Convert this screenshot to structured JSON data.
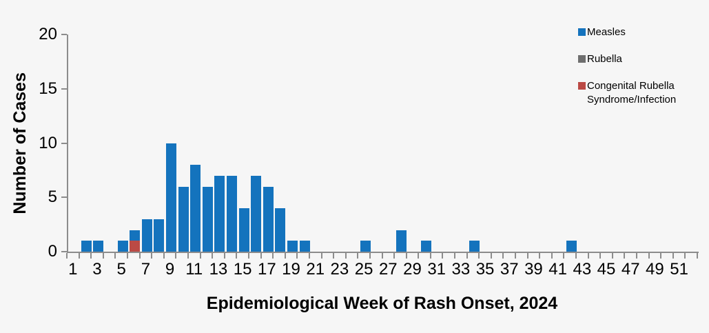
{
  "page": {
    "background_color": "#f6f6f6"
  },
  "chart": {
    "y_axis_title": "Number of Cases",
    "x_axis_title": "Epidemiological Week of Rash Onset, 2024",
    "axis_color": "#8c8c8c",
    "text_color": "#000000"
  },
  "chart_data": {
    "type": "bar",
    "stacked": true,
    "title": "",
    "xlabel": "Epidemiological Week of Rash Onset, 2024",
    "ylabel": "Number of Cases",
    "x": [
      1,
      2,
      3,
      4,
      5,
      6,
      7,
      8,
      9,
      10,
      11,
      12,
      13,
      14,
      15,
      16,
      17,
      18,
      19,
      20,
      21,
      22,
      23,
      24,
      25,
      26,
      27,
      28,
      29,
      30,
      31,
      32,
      33,
      34,
      35,
      36,
      37,
      38,
      39,
      40,
      41,
      42,
      43,
      44,
      45,
      46,
      47,
      48,
      49,
      50,
      51,
      52
    ],
    "x_tick_labels": [
      1,
      3,
      5,
      7,
      9,
      11,
      13,
      15,
      17,
      19,
      21,
      23,
      25,
      27,
      29,
      31,
      33,
      35,
      37,
      39,
      41,
      43,
      45,
      47,
      49,
      51
    ],
    "y_ticks": [
      0,
      5,
      10,
      15,
      20
    ],
    "ylim": [
      0,
      20
    ],
    "grid": false,
    "legend_position": "top-right",
    "stack_order_bottom_to_top": [
      "Congenital Rubella Syndrome/Infection",
      "Rubella",
      "Measles"
    ],
    "series": [
      {
        "name": "Measles",
        "color": "#1473bd",
        "values": [
          0,
          1,
          1,
          0,
          1,
          1,
          3,
          3,
          10,
          6,
          8,
          6,
          7,
          7,
          4,
          7,
          6,
          4,
          1,
          1,
          0,
          0,
          0,
          0,
          1,
          0,
          0,
          2,
          0,
          1,
          0,
          0,
          0,
          1,
          0,
          0,
          0,
          0,
          0,
          0,
          0,
          1,
          0,
          0,
          0,
          0,
          0,
          0,
          0,
          0,
          0,
          0
        ]
      },
      {
        "name": "Rubella",
        "color": "#6f6f6f",
        "values": [
          0,
          0,
          0,
          0,
          0,
          0,
          0,
          0,
          0,
          0,
          0,
          0,
          0,
          0,
          0,
          0,
          0,
          0,
          0,
          0,
          0,
          0,
          0,
          0,
          0,
          0,
          0,
          0,
          0,
          0,
          0,
          0,
          0,
          0,
          0,
          0,
          0,
          0,
          0,
          0,
          0,
          0,
          0,
          0,
          0,
          0,
          0,
          0,
          0,
          0,
          0,
          0
        ]
      },
      {
        "name": "Congenital Rubella Syndrome/Infection",
        "color": "#bb4a45",
        "values": [
          0,
          0,
          0,
          0,
          0,
          1,
          0,
          0,
          0,
          0,
          0,
          0,
          0,
          0,
          0,
          0,
          0,
          0,
          0,
          0,
          0,
          0,
          0,
          0,
          0,
          0,
          0,
          0,
          0,
          0,
          0,
          0,
          0,
          0,
          0,
          0,
          0,
          0,
          0,
          0,
          0,
          0,
          0,
          0,
          0,
          0,
          0,
          0,
          0,
          0,
          0,
          0
        ]
      }
    ]
  }
}
